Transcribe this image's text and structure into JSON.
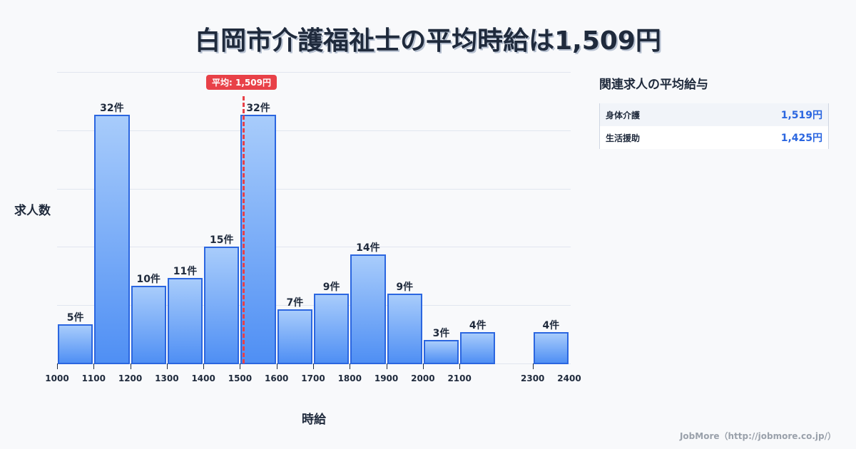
{
  "title": "白岡市介護福祉士の平均時給は1,509円",
  "chart_data": {
    "type": "bar",
    "title": "白岡市介護福祉士の平均時給は1,509円",
    "xlabel": "時給",
    "ylabel": "求人数",
    "bins": [
      {
        "from": 1000,
        "to": 1100,
        "value": 5,
        "label": "5件"
      },
      {
        "from": 1100,
        "to": 1200,
        "value": 32,
        "label": "32件"
      },
      {
        "from": 1200,
        "to": 1300,
        "value": 10,
        "label": "10件"
      },
      {
        "from": 1300,
        "to": 1400,
        "value": 11,
        "label": "11件"
      },
      {
        "from": 1400,
        "to": 1500,
        "value": 15,
        "label": "15件"
      },
      {
        "from": 1500,
        "to": 1600,
        "value": 32,
        "label": "32件"
      },
      {
        "from": 1600,
        "to": 1700,
        "value": 7,
        "label": "7件"
      },
      {
        "from": 1700,
        "to": 1800,
        "value": 9,
        "label": "9件"
      },
      {
        "from": 1800,
        "to": 1900,
        "value": 14,
        "label": "14件"
      },
      {
        "from": 1900,
        "to": 2000,
        "value": 9,
        "label": "9件"
      },
      {
        "from": 2000,
        "to": 2100,
        "value": 3,
        "label": "3件"
      },
      {
        "from": 2100,
        "to": 2200,
        "value": 4,
        "label": "4件"
      },
      {
        "from": 2300,
        "to": 2400,
        "value": 4,
        "label": "4件"
      }
    ],
    "categories": [
      "1000-1100",
      "1100-1200",
      "1200-1300",
      "1300-1400",
      "1400-1500",
      "1500-1600",
      "1600-1700",
      "1700-1800",
      "1800-1900",
      "1900-2000",
      "2000-2100",
      "2100-2200",
      "2300-2400"
    ],
    "values": [
      5,
      32,
      10,
      11,
      15,
      32,
      7,
      9,
      14,
      9,
      3,
      4,
      4
    ],
    "x_ticks": [
      "1000",
      "1100",
      "1200",
      "1300",
      "1400",
      "1500",
      "1600",
      "1700",
      "1800",
      "1900",
      "2000",
      "2100",
      "2300",
      "2400"
    ],
    "xlim": [
      1000,
      2400
    ],
    "ylim": [
      0,
      37.5
    ],
    "grid": true,
    "annotations": [
      {
        "type": "vline",
        "x": 1509,
        "label": "平均: 1,509円",
        "color": "#e84148"
      }
    ],
    "bar_color": "#4f8ff4",
    "bar_border_color": "#2b66e0"
  },
  "average_badge": "平均: 1,509円",
  "side_panel": {
    "title": "関連求人の平均給与",
    "rows": [
      {
        "name": "身体介護",
        "value": "1,519円"
      },
      {
        "name": "生活援助",
        "value": "1,425円"
      }
    ]
  },
  "footer": "JobMore（http://jobmore.co.jp/）",
  "colors": {
    "accent": "#2b66e0",
    "average": "#e84148",
    "text": "#1f2a3c",
    "background": "#f8f9fb"
  }
}
